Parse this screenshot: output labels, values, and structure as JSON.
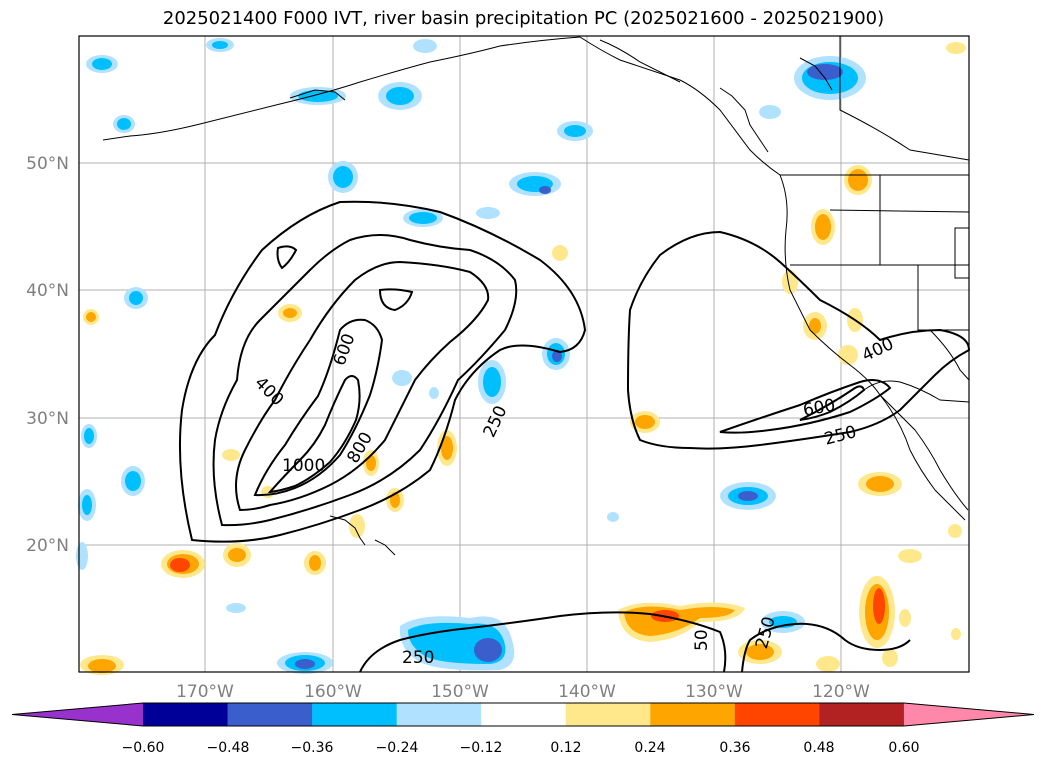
{
  "title": "2025021400 F000 IVT, river basin precipitation PC (2025021600 - 2025021900)",
  "map": {
    "lat_labels": [
      "50°N",
      "40°N",
      "30°N",
      "20°N"
    ],
    "lon_labels": [
      "170°W",
      "160°W",
      "150°W",
      "140°W",
      "130°W",
      "120°W"
    ],
    "contour_labels": [
      "600",
      "400",
      "800",
      "1000",
      "250",
      "600",
      "400",
      "250",
      "250",
      "50",
      "250"
    ],
    "colors": {
      "gridline": "#b0b0b0",
      "coast": "#000000",
      "label_gray": "#808080"
    }
  },
  "colorbar": {
    "ticks": [
      "−0.60",
      "−0.48",
      "−0.36",
      "−0.24",
      "−0.12",
      "0.12",
      "0.24",
      "0.36",
      "0.48",
      "0.60"
    ],
    "colors": [
      "#9932cc",
      "#000099",
      "#3a5fcd",
      "#00bfff",
      "#b0e2ff",
      "#ffffff",
      "#ffe88c",
      "#ffa500",
      "#ff4500",
      "#b22222",
      "#ff88aa"
    ]
  }
}
